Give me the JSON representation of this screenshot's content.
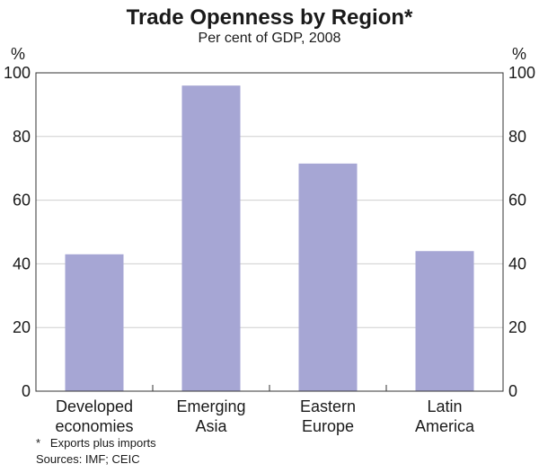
{
  "chart_data": {
    "type": "bar",
    "title": "Trade Openness by Region*",
    "subtitle": "Per cent of GDP, 2008",
    "categories": [
      [
        "Developed",
        "economies"
      ],
      [
        "Emerging",
        "Asia"
      ],
      [
        "Eastern",
        "Europe"
      ],
      [
        "Latin",
        "America"
      ]
    ],
    "series": [
      {
        "values": [
          43,
          96,
          71.5,
          44
        ]
      }
    ],
    "ylim": [
      0,
      100
    ],
    "yticks": [
      0,
      20,
      40,
      60,
      80,
      100
    ],
    "ylabel_left": "%",
    "ylabel_right": "%",
    "grid": true,
    "bar_color": "#a6a6d4",
    "grid_color": "#cfcfcf",
    "axis_color": "#333333",
    "footnotes": [
      "*   Exports plus imports",
      "Sources: IMF; CEIC"
    ]
  }
}
